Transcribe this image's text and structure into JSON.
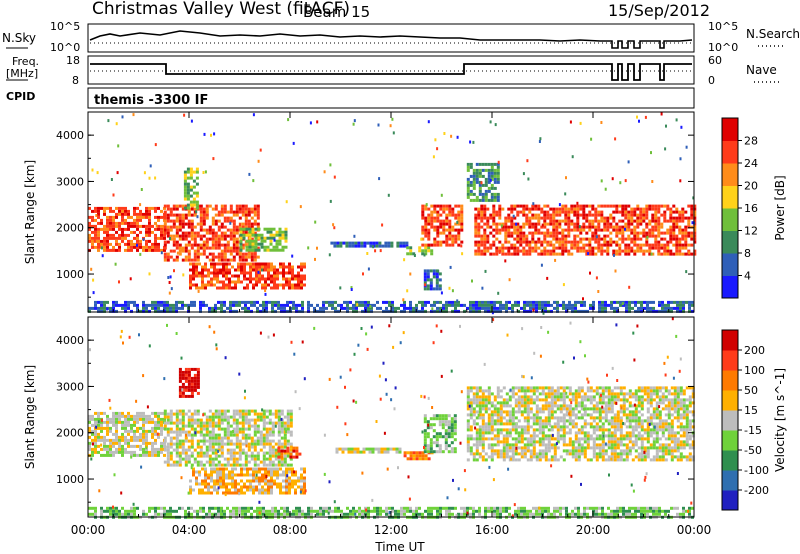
{
  "header": {
    "title": "Christmas Valley West (fitACF)",
    "beam": "Beam 15",
    "date": "15/Sep/2012"
  },
  "panels": {
    "nsky": {
      "left_label": "N.Sky",
      "right_label": "N.Search",
      "left_ticks": [
        "10^5",
        "10^0"
      ],
      "right_ticks": [
        "10^5",
        "10^0"
      ]
    },
    "freq": {
      "left_label": "Freq.",
      "left_unit": "[MHz]",
      "right_label": "Nave",
      "left_ticks": [
        "18",
        "8"
      ],
      "right_ticks": [
        "60",
        "0"
      ]
    },
    "cpid": {
      "label": "CPID",
      "value": "themis -3300 IF"
    }
  },
  "chart_data": [
    {
      "type": "heatmap",
      "name": "power",
      "ylabel": "Slant Range [km]",
      "xlabel": "",
      "ylim": [
        180,
        4500
      ],
      "xlim_hours": [
        0,
        24
      ],
      "yticks": [
        "1000",
        "2000",
        "3000",
        "4000"
      ],
      "xticks": [
        "00:00",
        "04:00",
        "08:00",
        "12:00",
        "16:00",
        "20:00",
        "00:00"
      ],
      "colorbar": {
        "label": "Power [dB]",
        "ticks": [
          "4",
          "8",
          "12",
          "16",
          "20",
          "24",
          "28"
        ],
        "colors": [
          "#1a1aff",
          "#2f5fb8",
          "#3a8a5a",
          "#6fbf3a",
          "#ffd21a",
          "#ff8c1a",
          "#ff3b1a",
          "#e00000"
        ]
      },
      "regions": [
        {
          "t0": 0.0,
          "t1": 3.0,
          "r0": 1500,
          "r1": 2450,
          "level": 6
        },
        {
          "t0": 3.0,
          "t1": 6.8,
          "r0": 1300,
          "r1": 2500,
          "level": 6
        },
        {
          "t0": 4.0,
          "t1": 8.6,
          "r0": 700,
          "r1": 1250,
          "level": 6
        },
        {
          "t0": 3.8,
          "t1": 4.3,
          "r0": 2400,
          "r1": 3300,
          "level": 3
        },
        {
          "t0": 6.0,
          "t1": 7.8,
          "r0": 1500,
          "r1": 2000,
          "level": 3
        },
        {
          "t0": 9.6,
          "t1": 12.6,
          "r0": 1580,
          "r1": 1700,
          "level": 1
        },
        {
          "t0": 12.6,
          "t1": 13.6,
          "r0": 1450,
          "r1": 1600,
          "level": 3
        },
        {
          "t0": 13.2,
          "t1": 14.8,
          "r0": 1600,
          "r1": 2500,
          "level": 6
        },
        {
          "t0": 13.3,
          "t1": 13.9,
          "r0": 700,
          "r1": 1100,
          "level": 1
        },
        {
          "t0": 15.0,
          "t1": 16.3,
          "r0": 2600,
          "r1": 3400,
          "level": 2
        },
        {
          "t0": 15.3,
          "t1": 24.0,
          "r0": 1400,
          "r1": 2500,
          "level": 6
        },
        {
          "t0": 0.0,
          "t1": 24.0,
          "r0": 180,
          "r1": 420,
          "level": 1
        }
      ]
    },
    {
      "type": "heatmap",
      "name": "velocity",
      "ylabel": "Slant Range [km]",
      "xlabel": "Time UT",
      "ylim": [
        180,
        4500
      ],
      "xlim_hours": [
        0,
        24
      ],
      "yticks": [
        "1000",
        "2000",
        "3000",
        "4000"
      ],
      "xticks": [
        "00:00",
        "04:00",
        "08:00",
        "12:00",
        "16:00",
        "20:00",
        "00:00"
      ],
      "colorbar": {
        "label": "Velocity [m s^-1]",
        "ticks": [
          "200",
          "100",
          "50",
          "15",
          "-15",
          "-50",
          "-100",
          "-200"
        ],
        "colors": [
          "#2020c0",
          "#2f6fb0",
          "#2f8f4f",
          "#6fd23a",
          "#bdbdbd",
          "#ffb000",
          "#ff7a00",
          "#ff3b1a",
          "#d00000"
        ]
      },
      "regions": [
        {
          "t0": 0.0,
          "t1": 3.0,
          "r0": 1500,
          "r1": 2450,
          "level": 4
        },
        {
          "t0": 3.0,
          "t1": 8.0,
          "r0": 1300,
          "r1": 2500,
          "level": 4
        },
        {
          "t0": 4.0,
          "t1": 8.6,
          "r0": 700,
          "r1": 1250,
          "level": 5
        },
        {
          "t0": 3.6,
          "t1": 4.4,
          "r0": 2800,
          "r1": 3400,
          "level": 8
        },
        {
          "t0": 7.5,
          "t1": 8.4,
          "r0": 1500,
          "r1": 1700,
          "level": 7
        },
        {
          "t0": 9.8,
          "t1": 12.3,
          "r0": 1580,
          "r1": 1680,
          "level": 4
        },
        {
          "t0": 12.5,
          "t1": 13.6,
          "r0": 1450,
          "r1": 1600,
          "level": 6
        },
        {
          "t0": 13.3,
          "t1": 14.6,
          "r0": 1600,
          "r1": 2400,
          "level": 3
        },
        {
          "t0": 15.0,
          "t1": 24.0,
          "r0": 1400,
          "r1": 3000,
          "level": 4
        },
        {
          "t0": 0.0,
          "t1": 24.0,
          "r0": 180,
          "r1": 400,
          "level": 3
        }
      ]
    }
  ]
}
